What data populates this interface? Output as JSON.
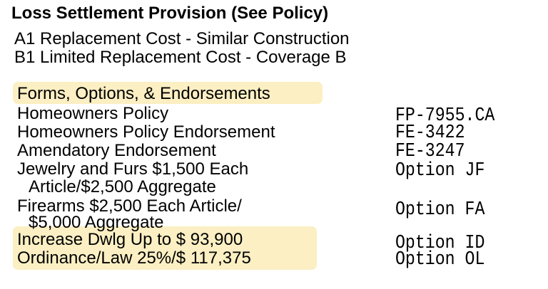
{
  "provision": {
    "title": "Loss Settlement Provision (See Policy)",
    "a1": "A1 Replacement Cost - Similar Construction",
    "b1": "B1 Limited Replacement Cost - Coverage B"
  },
  "forms": {
    "header": "Forms, Options, & Endorsements",
    "rows": [
      {
        "desc": "Homeowners Policy",
        "code": "FP-7955.CA"
      },
      {
        "desc": "Homeowners Policy Endorsement",
        "code": "FE-3422"
      },
      {
        "desc": "Amendatory Endorsement",
        "code": "FE-3247"
      },
      {
        "desc": "Jewelry and Furs $1,500 Each",
        "desc2": "Article/$2,500 Aggregate",
        "code": "Option JF"
      },
      {
        "desc": "Firearms $2,500 Each Article/",
        "desc2": "$5,000 Aggregate",
        "code": "Option FA"
      },
      {
        "desc": "Increase Dwlg Up to $  93,900",
        "code": "Option ID"
      },
      {
        "desc": "Ordinance/Law   25%/$  117,375",
        "code": "Option OL"
      }
    ]
  },
  "colors": {
    "highlight": "#fbefc3"
  }
}
